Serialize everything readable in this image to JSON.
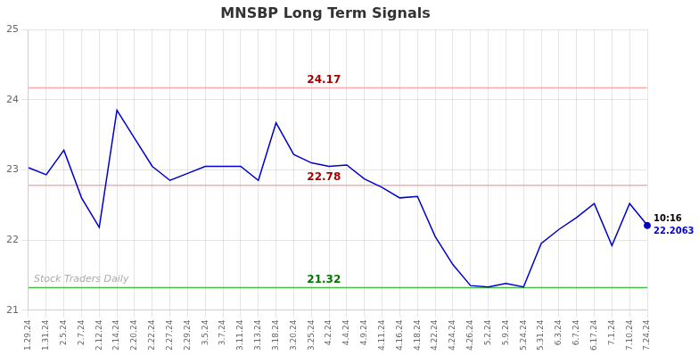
{
  "chart_data": {
    "type": "line",
    "title": "MNSBP Long Term Signals",
    "categories": [
      "1.29.24",
      "1.31.24",
      "2.5.24",
      "2.7.24",
      "2.12.24",
      "2.14.24",
      "2.20.24",
      "2.22.24",
      "2.27.24",
      "2.29.24",
      "3.5.24",
      "3.7.24",
      "3.11.24",
      "3.13.24",
      "3.18.24",
      "3.20.24",
      "3.25.24",
      "4.2.24",
      "4.4.24",
      "4.9.24",
      "4.11.24",
      "4.16.24",
      "4.18.24",
      "4.22.24",
      "4.24.24",
      "4.26.24",
      "5.2.24",
      "5.9.24",
      "5.24.24",
      "5.31.24",
      "6.3.24",
      "6.7.24",
      "6.17.24",
      "7.1.24",
      "7.10.24",
      "7.24.24"
    ],
    "values": [
      23.03,
      22.93,
      23.28,
      22.6,
      22.18,
      23.85,
      23.45,
      23.05,
      22.85,
      22.95,
      23.05,
      23.05,
      23.05,
      22.85,
      23.67,
      23.22,
      23.1,
      23.05,
      23.07,
      22.87,
      22.75,
      22.6,
      22.62,
      22.05,
      21.65,
      21.35,
      21.33,
      21.38,
      21.33,
      21.95,
      22.15,
      22.32,
      22.52,
      21.92,
      22.52,
      22.21
    ],
    "color": "#0000cc",
    "ylim": [
      21.0,
      25.0
    ],
    "yticks": [
      21,
      22,
      23,
      24,
      25
    ],
    "grid": true,
    "reference_lines": [
      {
        "value": 24.17,
        "label": "24.17",
        "color": "#ffaaaa",
        "label_color": "#aa0000"
      },
      {
        "value": 22.78,
        "label": "22.78",
        "color": "#ffaaaa",
        "label_color": "#aa0000"
      },
      {
        "value": 21.32,
        "label": "21.32",
        "color": "#44bb44",
        "label_color": "#007700"
      }
    ],
    "annotations": [
      {
        "x": "7.24.24",
        "y": 22.2063,
        "label": "10:16",
        "value_label": "22.2063",
        "marker": "circle",
        "color": "#0000cc"
      }
    ],
    "watermark": "Stock Traders Daily"
  }
}
